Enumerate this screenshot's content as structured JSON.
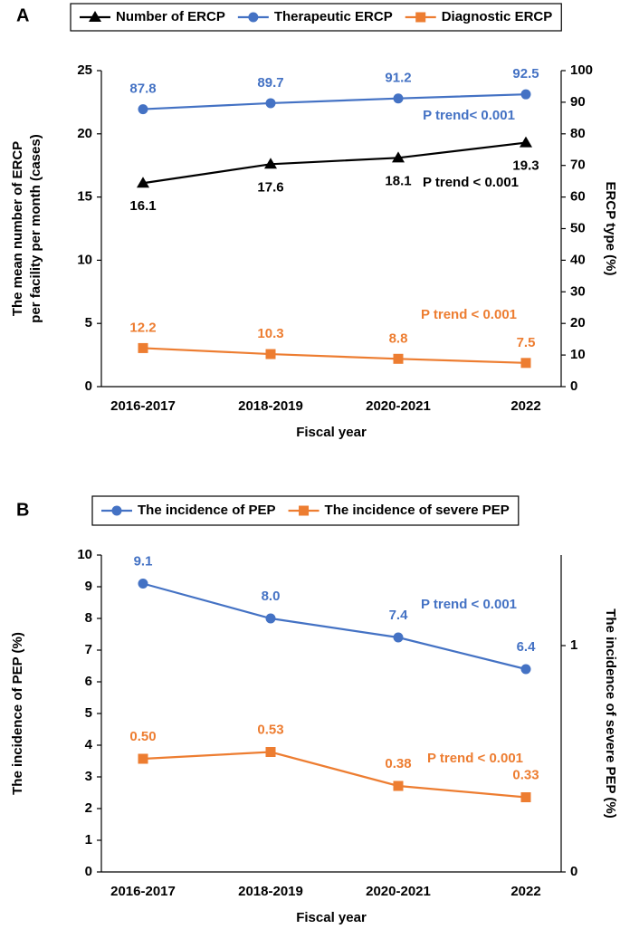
{
  "chart_data": [
    {
      "type": "line",
      "panel_label": "A",
      "categories": [
        "2016-2017",
        "2018-2019",
        "2020-2021",
        "2022"
      ],
      "x_label": "Fiscal year",
      "y_label": [
        "The mean number of ERCP",
        "per facility per month (cases)"
      ],
      "y2_label": "ERCP type (%)",
      "ylim": [
        0,
        25
      ],
      "yticks": [
        0,
        5,
        10,
        15,
        20,
        25
      ],
      "y2lim": [
        0,
        100
      ],
      "y2ticks": [
        0,
        10,
        20,
        30,
        40,
        50,
        60,
        70,
        80,
        90,
        100
      ],
      "series": [
        {
          "name": "Number of ERCP",
          "color": "#000000",
          "marker": "triangle",
          "axis": "y",
          "values": [
            16.1,
            17.6,
            18.1,
            19.3
          ]
        },
        {
          "name": "Therapeutic ERCP",
          "color": "#4472c4",
          "marker": "circle",
          "axis": "y2",
          "values": [
            87.8,
            89.7,
            91.2,
            92.5
          ]
        },
        {
          "name": "Diagnostic ERCP",
          "color": "#ed7d31",
          "marker": "square",
          "axis": "y2",
          "values": [
            12.2,
            10.3,
            8.8,
            7.5
          ]
        }
      ],
      "annotations": [
        {
          "text": "P trend< 0.001",
          "color": "#4472c4"
        },
        {
          "text": "P trend < 0.001",
          "color": "#000000"
        },
        {
          "text": "P trend < 0.001",
          "color": "#ed7d31"
        }
      ]
    },
    {
      "type": "line",
      "panel_label": "B",
      "categories": [
        "2016-2017",
        "2018-2019",
        "2020-2021",
        "2022"
      ],
      "x_label": "Fiscal year",
      "y_label": [
        "The incidence of PEP (%)"
      ],
      "y2_label": "The incidence of severe PEP (%)",
      "ylim": [
        0,
        10
      ],
      "yticks": [
        0,
        1,
        2,
        3,
        4,
        5,
        6,
        7,
        8,
        9,
        10
      ],
      "y2lim": [
        0,
        1.4
      ],
      "y2ticks": [
        0,
        1
      ],
      "series": [
        {
          "name": "The incidence of PEP",
          "color": "#4472c4",
          "marker": "circle",
          "axis": "y",
          "values": [
            9.1,
            8.0,
            7.4,
            6.4
          ],
          "value_labels": [
            "9.1",
            "8.0",
            "7.4",
            "6.4"
          ]
        },
        {
          "name": "The incidence of severe PEP",
          "color": "#ed7d31",
          "marker": "square",
          "axis": "y2",
          "values": [
            0.5,
            0.53,
            0.38,
            0.33
          ],
          "value_labels": [
            "0.50",
            "0.53",
            "0.38",
            "0.33"
          ]
        }
      ],
      "annotations": [
        {
          "text": "P trend < 0.001",
          "color": "#4472c4"
        },
        {
          "text": "P trend < 0.001",
          "color": "#ed7d31"
        }
      ]
    }
  ]
}
